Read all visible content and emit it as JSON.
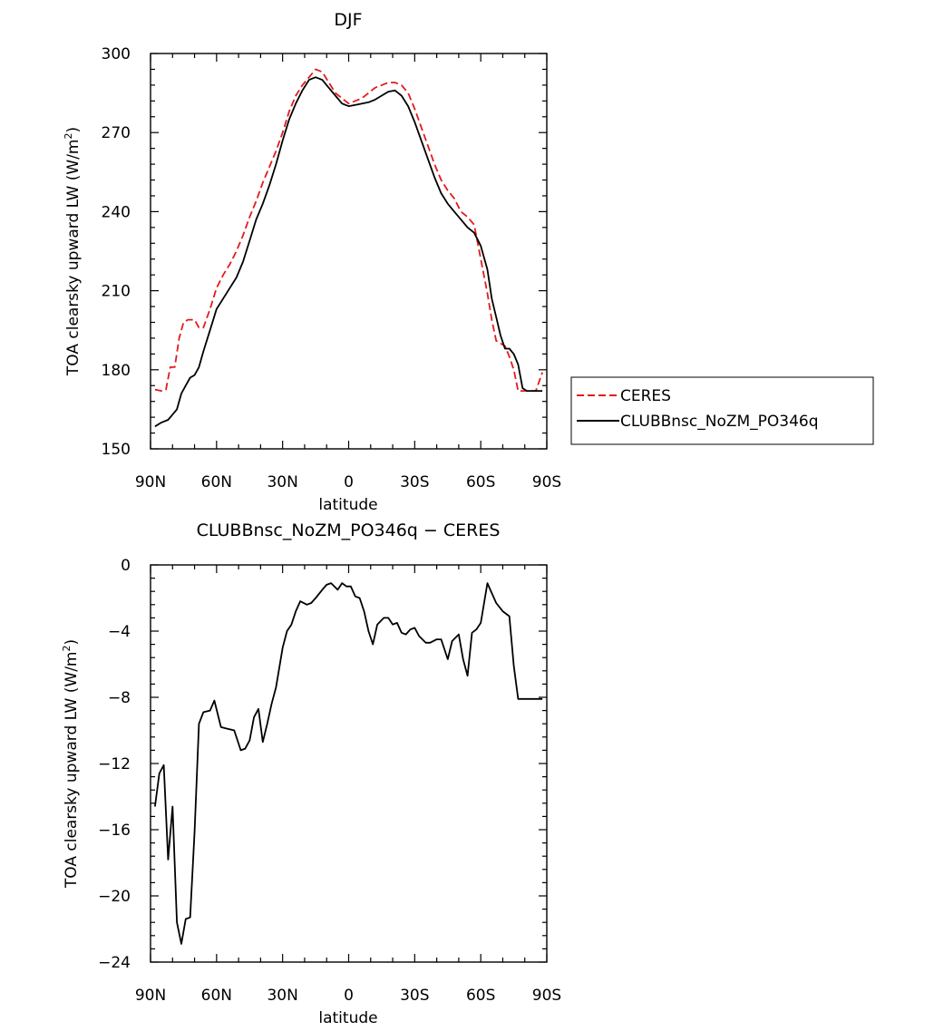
{
  "chart_data": [
    {
      "type": "line",
      "title": "DJF",
      "xlabel": "latitude",
      "ylabel": "TOA clearsky upward LW (W/m",
      "ylabel_sup": "2",
      "ylabel_end": ")",
      "xlim": [
        -90,
        90
      ],
      "ylim": [
        150,
        300
      ],
      "x_ticks": [
        -90,
        -60,
        -30,
        0,
        30,
        60,
        90
      ],
      "x_tick_labels": [
        "90N",
        "60N",
        "30N",
        "0",
        "30S",
        "60S",
        "90S"
      ],
      "y_ticks": [
        150,
        180,
        210,
        240,
        270,
        300
      ],
      "y_tick_labels": [
        "150",
        "180",
        "210",
        "240",
        "270",
        "300"
      ],
      "legend_position": "right",
      "series": [
        {
          "name": "CERES",
          "color": "#e41a1c",
          "dash": true,
          "x": [
            -88,
            -85,
            -83,
            -81,
            -79,
            -77,
            -75,
            -73,
            -70,
            -68,
            -66,
            -63,
            -60,
            -57,
            -54,
            -51,
            -48,
            -45,
            -42,
            -39,
            -36,
            -33,
            -30,
            -27,
            -24,
            -21,
            -18,
            -15,
            -12,
            -9,
            -6,
            -3,
            0,
            3,
            6,
            9,
            12,
            15,
            18,
            21,
            24,
            27,
            30,
            33,
            36,
            39,
            42,
            45,
            48,
            51,
            54,
            57,
            60,
            63,
            65,
            67,
            69,
            71,
            73,
            75,
            77,
            79,
            81,
            83,
            85,
            88
          ],
          "y": [
            172.5,
            172,
            172.5,
            181,
            181,
            192,
            198,
            199,
            199,
            196,
            196,
            203,
            211,
            216,
            220,
            225,
            231,
            238,
            244,
            251,
            257,
            263,
            270,
            278,
            284,
            288,
            291,
            294,
            293,
            289,
            285,
            283,
            281,
            282,
            283,
            285,
            287,
            288,
            289,
            289,
            288,
            285,
            279,
            272,
            265,
            258,
            252,
            248,
            245,
            240,
            238,
            235,
            222,
            209,
            199,
            191,
            190,
            189,
            185,
            180,
            172,
            172,
            172,
            172,
            172,
            179
          ]
        },
        {
          "name": "CLUBBnsc_NoZM_PO346q",
          "color": "#000000",
          "dash": false,
          "x": [
            -88,
            -85,
            -82,
            -80,
            -78,
            -76,
            -74,
            -72,
            -70,
            -68,
            -66,
            -63,
            -60,
            -57,
            -54,
            -51,
            -48,
            -45,
            -42,
            -39,
            -36,
            -33,
            -30,
            -27,
            -24,
            -21,
            -18,
            -15,
            -12,
            -9,
            -6,
            -3,
            0,
            3,
            6,
            9,
            12,
            15,
            18,
            21,
            24,
            27,
            30,
            33,
            36,
            39,
            42,
            45,
            48,
            51,
            54,
            57,
            60,
            63,
            65,
            67,
            69,
            71,
            73,
            75,
            77,
            79,
            81,
            83,
            85,
            88
          ],
          "y": [
            158.5,
            160,
            161,
            163,
            165,
            171,
            174,
            177,
            178,
            181,
            187,
            195,
            203,
            207,
            211,
            215,
            221,
            229,
            237,
            243,
            250,
            258,
            267,
            275,
            281,
            286,
            290,
            291,
            290,
            287,
            284,
            281,
            280,
            280.5,
            281,
            281.5,
            282.5,
            284,
            285.5,
            286,
            284,
            280,
            274,
            267,
            260,
            253,
            247,
            243,
            240,
            237,
            234,
            232,
            227,
            218,
            207,
            200,
            193,
            188,
            188,
            186,
            182,
            173,
            172,
            172,
            172,
            172
          ]
        }
      ]
    },
    {
      "type": "line",
      "title": "CLUBBnsc_NoZM_PO346q − CERES",
      "xlabel": "latitude",
      "ylabel": "TOA clearsky upward LW (W/m",
      "ylabel_sup": "2",
      "ylabel_end": ")",
      "xlim": [
        -90,
        90
      ],
      "ylim": [
        -24,
        0
      ],
      "x_ticks": [
        -90,
        -60,
        -30,
        0,
        30,
        60,
        90
      ],
      "x_tick_labels": [
        "90N",
        "60N",
        "30N",
        "0",
        "30S",
        "60S",
        "90S"
      ],
      "y_ticks": [
        -24,
        -20,
        -16,
        -12,
        -8,
        -4,
        0
      ],
      "y_tick_labels": [
        "−24",
        "−20",
        "−16",
        "−12",
        "−8",
        "−4",
        "0"
      ],
      "series": [
        {
          "color": "#000000",
          "dash": false,
          "x": [
            -88,
            -86,
            -84,
            -82,
            -80,
            -78,
            -76,
            -74,
            -72,
            -70,
            -68,
            -66,
            -63,
            -61,
            -58,
            -55,
            -52,
            -49,
            -47,
            -45,
            -43,
            -41,
            -39,
            -37,
            -35,
            -33,
            -30,
            -28,
            -26,
            -24,
            -22,
            -19,
            -17,
            -15,
            -12,
            -10,
            -8,
            -5,
            -3,
            -1,
            1,
            3,
            5,
            7,
            9,
            11,
            13,
            16,
            18,
            20,
            22,
            24,
            26,
            28,
            30,
            32,
            35,
            37,
            40,
            42,
            45,
            47,
            50,
            52,
            54,
            56,
            58,
            60,
            63,
            65,
            67,
            70,
            73,
            75,
            77,
            79,
            81,
            83,
            85,
            88
          ],
          "y": [
            -14.6,
            -12.6,
            -12.1,
            -17.8,
            -14.6,
            -21.6,
            -22.9,
            -21.4,
            -21.3,
            -16.1,
            -9.6,
            -8.9,
            -8.8,
            -8.2,
            -9.8,
            -9.9,
            -10.0,
            -11.2,
            -11.1,
            -10.6,
            -9.2,
            -8.7,
            -10.7,
            -9.6,
            -8.4,
            -7.4,
            -5.0,
            -4.0,
            -3.6,
            -2.8,
            -2.2,
            -2.4,
            -2.3,
            -2.0,
            -1.5,
            -1.2,
            -1.1,
            -1.5,
            -1.1,
            -1.3,
            -1.3,
            -1.9,
            -2.0,
            -2.8,
            -4.0,
            -4.8,
            -3.6,
            -3.2,
            -3.2,
            -3.6,
            -3.5,
            -4.1,
            -4.2,
            -3.9,
            -3.8,
            -4.3,
            -4.7,
            -4.7,
            -4.5,
            -4.5,
            -5.7,
            -4.6,
            -4.2,
            -5.7,
            -6.7,
            -4.1,
            -3.9,
            -3.5,
            -1.1,
            -1.7,
            -2.3,
            -2.8,
            -3.1,
            -6.1,
            -8.1,
            -8.1,
            -8.1,
            -8.1,
            -8.1,
            -8.1
          ]
        }
      ]
    }
  ]
}
